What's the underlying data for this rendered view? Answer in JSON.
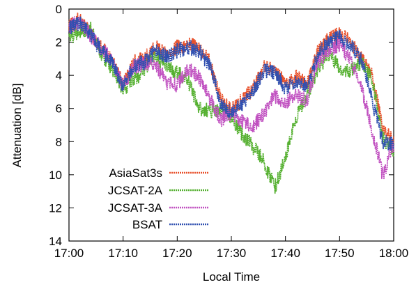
{
  "chart_data": {
    "type": "line",
    "xlabel": "Local Time",
    "ylabel": "Attenuation [dB]",
    "xlim": [
      "17:00",
      "18:00"
    ],
    "ylim": [
      0,
      14
    ],
    "y_reversed": true,
    "x_ticks": [
      "17:00",
      "17:10",
      "17:20",
      "17:30",
      "17:40",
      "17:50",
      "18:00"
    ],
    "y_ticks": [
      "0",
      "2",
      "4",
      "6",
      "8",
      "10",
      "12",
      "14"
    ],
    "grid": false,
    "legend_position": "bottom-left",
    "series": [
      {
        "name": "AsiaSat3s",
        "color": "#e8502a",
        "x": [
          "17:00",
          "17:02",
          "17:04",
          "17:06",
          "17:08",
          "17:10",
          "17:12",
          "17:14",
          "17:16",
          "17:18",
          "17:20",
          "17:22",
          "17:24",
          "17:26",
          "17:28",
          "17:30",
          "17:32",
          "17:34",
          "17:36",
          "17:38",
          "17:40",
          "17:42",
          "17:44",
          "17:46",
          "17:48",
          "17:50",
          "17:52",
          "17:54",
          "17:56",
          "17:58",
          "18:00"
        ],
        "values": [
          1.0,
          0.6,
          1.5,
          2.3,
          3.0,
          4.6,
          3.2,
          3.0,
          2.3,
          2.7,
          2.3,
          2.1,
          2.3,
          3.2,
          5.4,
          6.1,
          5.5,
          4.8,
          3.5,
          3.6,
          4.6,
          4.1,
          4.5,
          2.5,
          1.8,
          1.5,
          2.0,
          3.0,
          4.0,
          7.2,
          8.0
        ]
      },
      {
        "name": "JCSAT-2A",
        "color": "#55b030",
        "x": [
          "17:00",
          "17:02",
          "17:04",
          "17:06",
          "17:08",
          "17:10",
          "17:12",
          "17:14",
          "17:16",
          "17:18",
          "17:20",
          "17:22",
          "17:24",
          "17:26",
          "17:28",
          "17:30",
          "17:32",
          "17:34",
          "17:36",
          "17:38",
          "17:40",
          "17:42",
          "17:44",
          "17:46",
          "17:48",
          "17:50",
          "17:52",
          "17:54",
          "17:56",
          "17:58",
          "18:00"
        ],
        "values": [
          1.8,
          1.3,
          1.2,
          2.7,
          3.6,
          4.9,
          4.3,
          3.6,
          2.8,
          3.5,
          3.8,
          4.3,
          6.0,
          6.2,
          6.0,
          6.5,
          7.6,
          8.3,
          9.2,
          10.8,
          9.0,
          6.5,
          5.2,
          3.6,
          2.7,
          3.5,
          3.8,
          3.2,
          4.2,
          7.8,
          8.5
        ]
      },
      {
        "name": "JCSAT-3A",
        "color": "#c050c0",
        "x": [
          "17:00",
          "17:02",
          "17:04",
          "17:06",
          "17:08",
          "17:10",
          "17:12",
          "17:14",
          "17:16",
          "17:18",
          "17:20",
          "17:22",
          "17:24",
          "17:26",
          "17:28",
          "17:30",
          "17:32",
          "17:34",
          "17:36",
          "17:38",
          "17:40",
          "17:42",
          "17:44",
          "17:46",
          "17:48",
          "17:50",
          "17:52",
          "17:54",
          "17:56",
          "17:58",
          "18:00"
        ],
        "values": [
          1.0,
          0.8,
          1.6,
          2.4,
          3.1,
          4.7,
          3.5,
          3.3,
          3.3,
          4.4,
          4.6,
          3.6,
          4.1,
          5.4,
          6.7,
          6.3,
          6.8,
          7.1,
          6.3,
          5.2,
          5.6,
          5.2,
          5.5,
          3.2,
          2.5,
          2.1,
          3.1,
          4.6,
          7.3,
          10.1,
          8.2
        ]
      },
      {
        "name": "BSAT",
        "color": "#2f4fb0",
        "x": [
          "17:00",
          "17:02",
          "17:04",
          "17:06",
          "17:08",
          "17:10",
          "17:12",
          "17:14",
          "17:16",
          "17:18",
          "17:20",
          "17:22",
          "17:24",
          "17:26",
          "17:28",
          "17:30",
          "17:32",
          "17:34",
          "17:36",
          "17:38",
          "17:40",
          "17:42",
          "17:44",
          "17:46",
          "17:48",
          "17:50",
          "17:52",
          "17:54",
          "17:56",
          "17:58",
          "18:00"
        ],
        "values": [
          1.1,
          0.8,
          1.6,
          2.5,
          3.2,
          4.7,
          3.4,
          3.2,
          2.5,
          2.9,
          2.5,
          2.3,
          2.5,
          3.4,
          5.6,
          6.3,
          5.7,
          5.0,
          3.7,
          3.8,
          4.8,
          4.3,
          4.7,
          2.7,
          2.0,
          1.7,
          2.2,
          3.1,
          5.5,
          8.0,
          8.1
        ]
      }
    ]
  }
}
